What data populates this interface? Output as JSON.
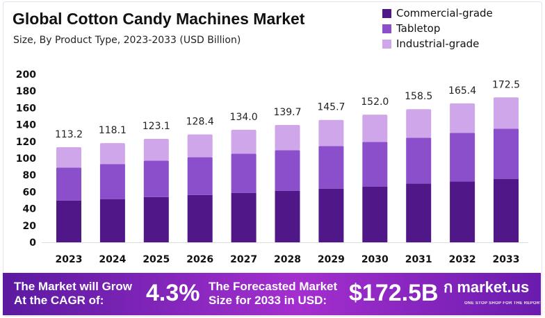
{
  "chart_data": {
    "type": "bar",
    "stacked": true,
    "title": "Global Cotton Candy Machines Market",
    "subtitle": "Size, By Product Type, 2023-2033 (USD Billion)",
    "categories": [
      "2023",
      "2024",
      "2025",
      "2026",
      "2027",
      "2028",
      "2029",
      "2030",
      "2031",
      "2032",
      "2033"
    ],
    "series": [
      {
        "name": "Commercial-grade",
        "color": "#4f1787",
        "values": [
          49.8,
          51.5,
          53.9,
          56.4,
          58.9,
          61.4,
          63.9,
          66.4,
          70.0,
          72.4,
          75.5
        ]
      },
      {
        "name": "Tabletop",
        "color": "#8b4fcc",
        "values": [
          39.2,
          41.7,
          43.2,
          44.8,
          46.5,
          48.1,
          50.6,
          53.1,
          54.5,
          57.9,
          59.8
        ]
      },
      {
        "name": "Industrial-grade",
        "color": "#d0a6ea",
        "values": [
          24.2,
          24.9,
          26.0,
          27.2,
          28.6,
          30.2,
          31.2,
          32.5,
          34.0,
          35.1,
          37.2
        ]
      }
    ],
    "totals": [
      "113.2",
      "118.1",
      "123.1",
      "128.4",
      "134.0",
      "139.7",
      "145.7",
      "152.0",
      "158.5",
      "165.4",
      "172.5"
    ],
    "ylim": [
      0,
      200
    ],
    "yticks": [
      "0",
      "20",
      "40",
      "60",
      "80",
      "100",
      "120",
      "140",
      "160",
      "180",
      "200"
    ],
    "grid": false,
    "legend_position": "top-right"
  },
  "banner": {
    "cagr_text": "The Market will Grow At the CAGR of:",
    "cagr_line1": "The Market will Grow",
    "cagr_line2": "At the CAGR of:",
    "cagr_value": "4.3%",
    "forecast_line1": "The Forecasted Market",
    "forecast_line2": "Size for 2033 in USD:",
    "forecast_value": "$172.5B",
    "logo": "market.us",
    "logo_tagline": "ONE STOP SHOP FOR THE REPORTS"
  }
}
